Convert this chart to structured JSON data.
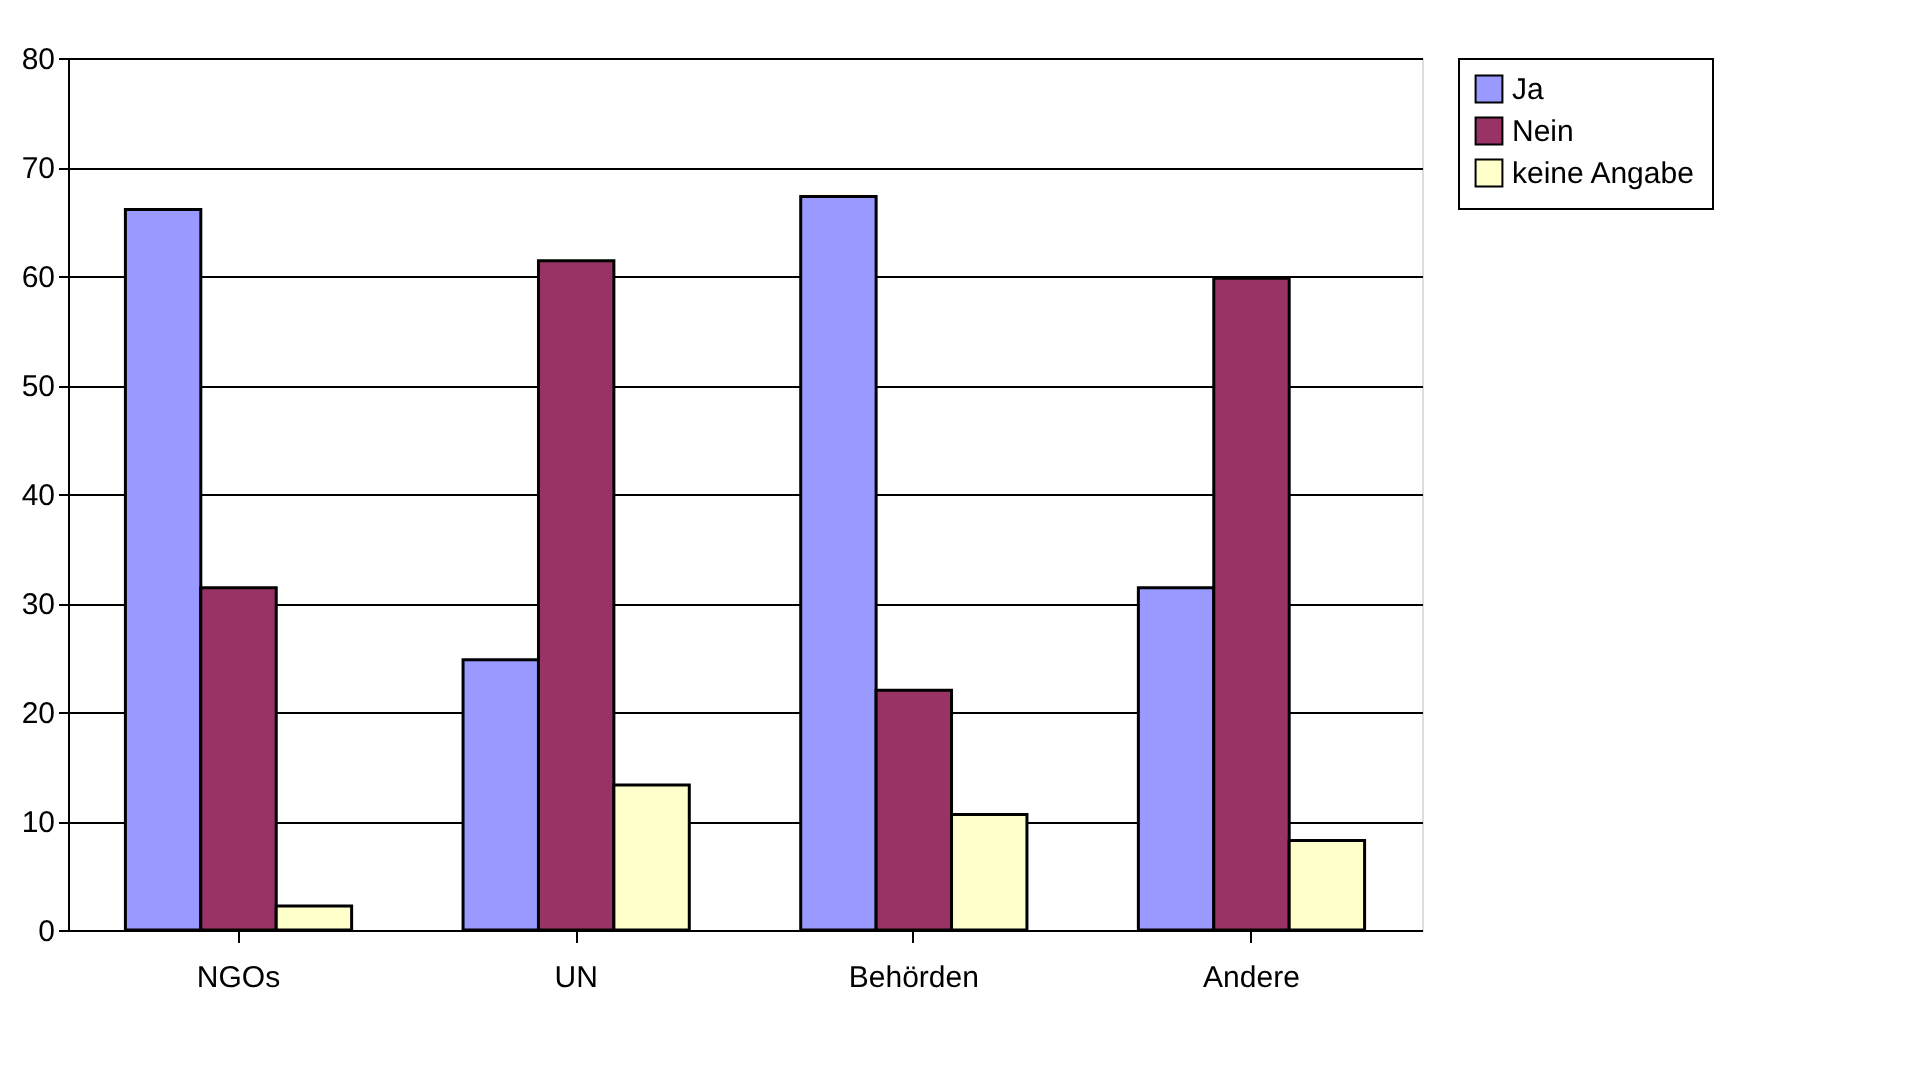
{
  "chart_data": {
    "type": "bar",
    "categories": [
      "NGOs",
      "UN",
      "Behörden",
      "Andere"
    ],
    "series": [
      {
        "name": "Ja",
        "color": "#9999ff",
        "values": [
          66.1,
          24.8,
          67.3,
          31.4
        ]
      },
      {
        "name": "Nein",
        "color": "#993366",
        "values": [
          31.4,
          61.4,
          22.0,
          59.8
        ]
      },
      {
        "name": "keine Angabe",
        "color": "#ffffcc",
        "values": [
          2.2,
          13.3,
          10.6,
          8.2
        ]
      }
    ],
    "ylim": [
      0,
      80
    ],
    "yticks": [
      0,
      10,
      20,
      30,
      40,
      50,
      60,
      70,
      80
    ],
    "grid": "y",
    "legend": "right"
  }
}
